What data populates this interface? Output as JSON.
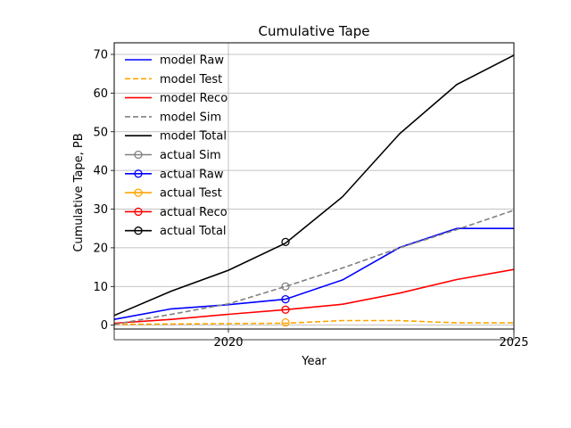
{
  "chart_data": {
    "type": "line",
    "title": "Cumulative Tape",
    "xlabel": "Year",
    "ylabel": "Cumulative Tape, PB",
    "xlim": [
      2018,
      2025
    ],
    "ylim": [
      -1,
      73
    ],
    "xticks": [
      2020,
      2025
    ],
    "yticks": [
      0,
      10,
      20,
      30,
      40,
      50,
      60,
      70
    ],
    "grid": true,
    "legend_placement": "top-left",
    "series": [
      {
        "name": "model Raw",
        "kind": "model",
        "color": "#0000ff",
        "dash": "solid",
        "x": [
          2018,
          2019,
          2020,
          2021,
          2022,
          2023,
          2024,
          2025
        ],
        "y": [
          1.5,
          4.2,
          5.3,
          6.7,
          11.7,
          20.1,
          25.0,
          25.0
        ]
      },
      {
        "name": "model Test",
        "kind": "model",
        "color": "#ffa500",
        "dash": "dashed",
        "x": [
          2018,
          2019,
          2020,
          2021,
          2022,
          2023,
          2024,
          2025
        ],
        "y": [
          0.2,
          0.3,
          0.4,
          0.5,
          1.2,
          1.2,
          0.6,
          0.6
        ]
      },
      {
        "name": "model Reco",
        "kind": "model",
        "color": "#ff0000",
        "dash": "solid",
        "x": [
          2018,
          2019,
          2020,
          2021,
          2022,
          2023,
          2024,
          2025
        ],
        "y": [
          0.5,
          1.5,
          2.8,
          4.0,
          5.4,
          8.3,
          11.8,
          14.4
        ]
      },
      {
        "name": "model Sim",
        "kind": "model",
        "color": "#808080",
        "dash": "dashed",
        "x": [
          2018,
          2019,
          2020,
          2021,
          2022,
          2023,
          2024,
          2025
        ],
        "y": [
          0.2,
          2.8,
          5.5,
          10.0,
          14.8,
          20.0,
          24.7,
          29.7
        ]
      },
      {
        "name": "model Total",
        "kind": "model",
        "color": "#000000",
        "dash": "solid",
        "x": [
          2018,
          2019,
          2020,
          2021,
          2022,
          2023,
          2024,
          2025
        ],
        "y": [
          2.5,
          8.8,
          14.2,
          21.2,
          33.2,
          49.5,
          62.2,
          69.8
        ]
      },
      {
        "name": "actual Sim",
        "kind": "actual",
        "color": "#808080",
        "x": [
          2021
        ],
        "y": [
          10.0
        ]
      },
      {
        "name": "actual Raw",
        "kind": "actual",
        "color": "#0000ff",
        "x": [
          2021
        ],
        "y": [
          6.7
        ]
      },
      {
        "name": "actual Test",
        "kind": "actual",
        "color": "#ffa500",
        "x": [
          2021
        ],
        "y": [
          0.7
        ]
      },
      {
        "name": "actual Reco",
        "kind": "actual",
        "color": "#ff0000",
        "x": [
          2021
        ],
        "y": [
          4.0
        ]
      },
      {
        "name": "actual Total",
        "kind": "actual",
        "color": "#000000",
        "x": [
          2021
        ],
        "y": [
          21.5
        ]
      }
    ]
  }
}
